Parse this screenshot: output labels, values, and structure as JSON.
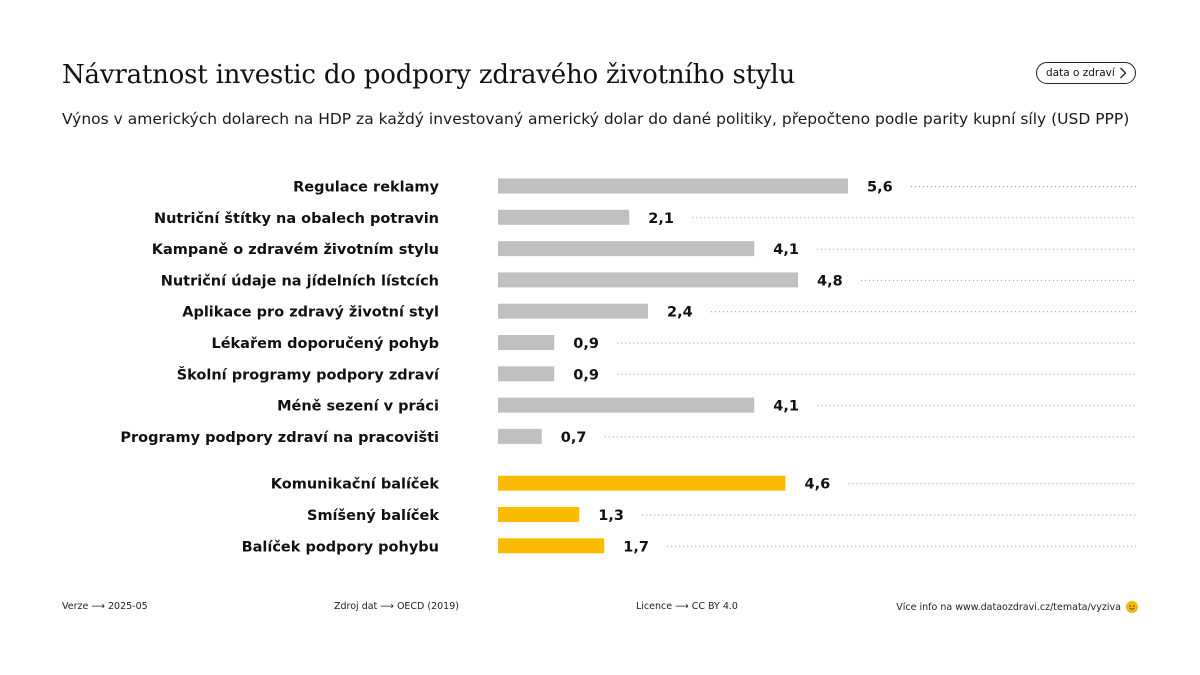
{
  "title": "Návratnost investic do podpory zdravého životního stylu",
  "subtitle": "Výnos v amerických dolarech na HDP za každý investovaný americký dolar do dané politiky, přepočteno podle parity kupní síly (USD PPP)",
  "data_button_label": "data o zdraví",
  "colors": {
    "neutral": "#c0c0c0",
    "accent": "#fbbb00",
    "dots": "#9a9a9a",
    "text": "#111111"
  },
  "footer": {
    "version": "Verze ⟶ 2025-05",
    "source": "Zdroj dat ⟶ OECD (2019)",
    "license": "Licence ⟶ CC BY 4.0",
    "more_info": "Více info na www.dataozdravi.cz/temata/vyziva",
    "icon": "smiley-icon"
  },
  "chart_data": {
    "type": "bar",
    "orientation": "horizontal",
    "categories": [
      "Regulace reklamy",
      "Nutriční štítky na obalech potravin",
      "Kampaně o zdravém životním stylu",
      "Nutriční údaje na jídelních lístcích",
      "Aplikace pro zdravý životní styl",
      "Lékařem doporučený pohyb",
      "Školní programy podpory zdraví",
      "Méně sezení v práci",
      "Programy podpory zdraví na pracovišti",
      "Komunikační balíček",
      "Smíšený balíček",
      "Balíček podpory pohybu"
    ],
    "values": [
      5.6,
      2.1,
      4.1,
      4.8,
      2.4,
      0.9,
      0.9,
      4.1,
      0.7,
      4.6,
      1.3,
      1.7
    ],
    "value_labels": [
      "5,6",
      "2,1",
      "4,1",
      "4,8",
      "2,4",
      "0,9",
      "0,9",
      "4,1",
      "0,7",
      "4,6",
      "1,3",
      "1,7"
    ],
    "groups": [
      "neutral",
      "neutral",
      "neutral",
      "neutral",
      "neutral",
      "neutral",
      "neutral",
      "neutral",
      "neutral",
      "accent",
      "accent",
      "accent"
    ],
    "xlim": [
      0,
      6
    ],
    "xlabel": "",
    "ylabel": "",
    "grid": false,
    "legend": "none"
  }
}
